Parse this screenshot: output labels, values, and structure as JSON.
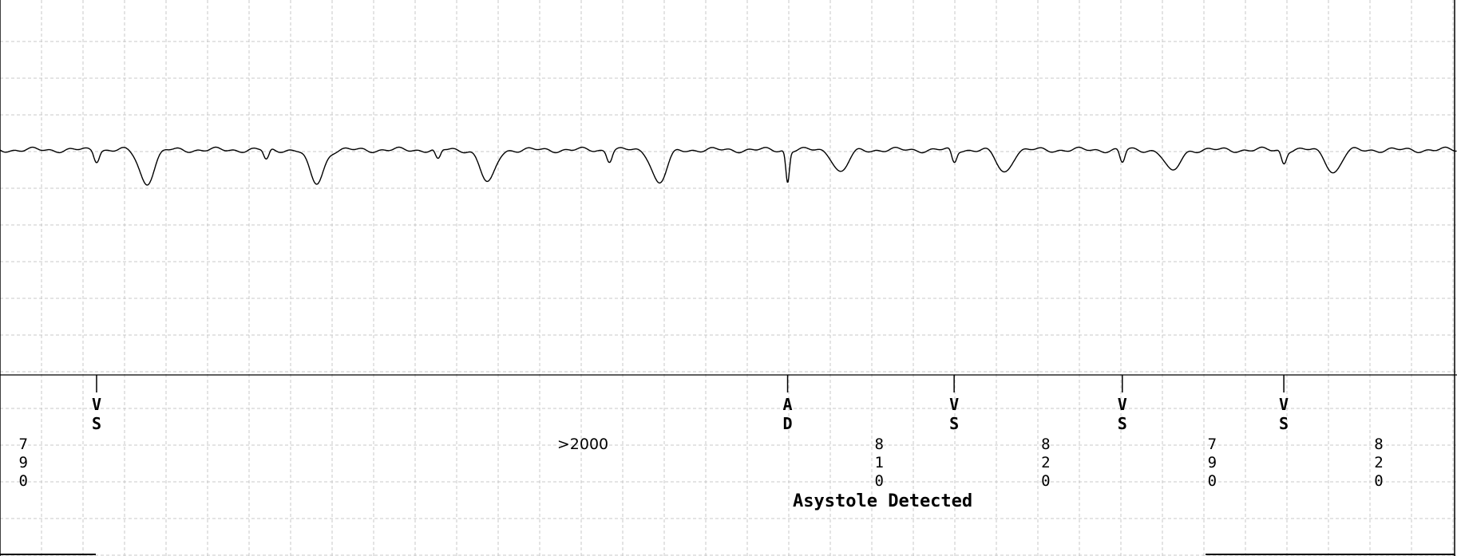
{
  "markers": [
    {
      "line1": "V",
      "line2": "S",
      "t": 0.58
    },
    {
      "line1": "A",
      "line2": "D",
      "t": 4.73
    },
    {
      "line1": "V",
      "line2": "S",
      "t": 5.73
    },
    {
      "line1": "V",
      "line2": "S",
      "t": 6.74
    },
    {
      "line1": "V",
      "line2": "S",
      "t": 7.71
    }
  ],
  "intervals": [
    {
      "digits": [
        "7",
        "9",
        "0"
      ],
      "t": 0.14
    },
    {
      "text": ">2000",
      "t": 3.5
    },
    {
      "digits": [
        "8",
        "1",
        "0"
      ],
      "t": 5.28
    },
    {
      "digits": [
        "8",
        "2",
        "0"
      ],
      "t": 6.28
    },
    {
      "digits": [
        "7",
        "9",
        "0"
      ],
      "t": 7.28
    },
    {
      "digits": [
        "8",
        "2",
        "0"
      ],
      "t": 8.28
    }
  ],
  "message": "Asystole Detected",
  "strip": {
    "duration_s": 8.75,
    "grid_color": "#c8c8c8",
    "trace_color": "#000000",
    "v_beats": [
      0.58,
      1.6,
      2.63,
      3.66,
      5.73,
      6.74,
      7.71
    ],
    "a_beats": [
      4.73
    ]
  }
}
